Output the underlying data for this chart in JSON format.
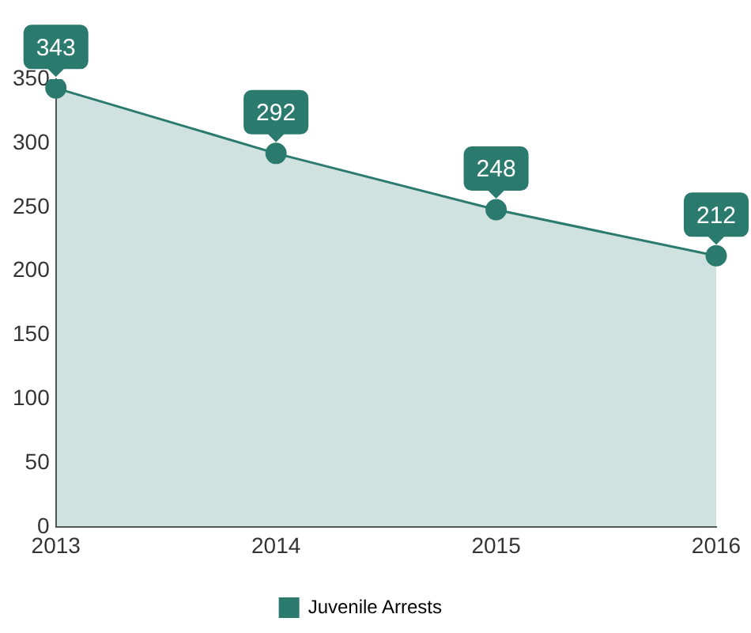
{
  "chart_data": {
    "type": "area",
    "categories": [
      "2013",
      "2014",
      "2015",
      "2016"
    ],
    "series": [
      {
        "name": "Juvenile Arrests",
        "color": "#2b7a6e",
        "values": [
          343,
          292,
          248,
          212
        ]
      }
    ],
    "ylim": [
      0,
      350
    ],
    "yticks": [
      0,
      50,
      100,
      150,
      200,
      250,
      300,
      350
    ],
    "grid": false,
    "legend": "bottom",
    "marker": "circle",
    "data_labels": true
  }
}
